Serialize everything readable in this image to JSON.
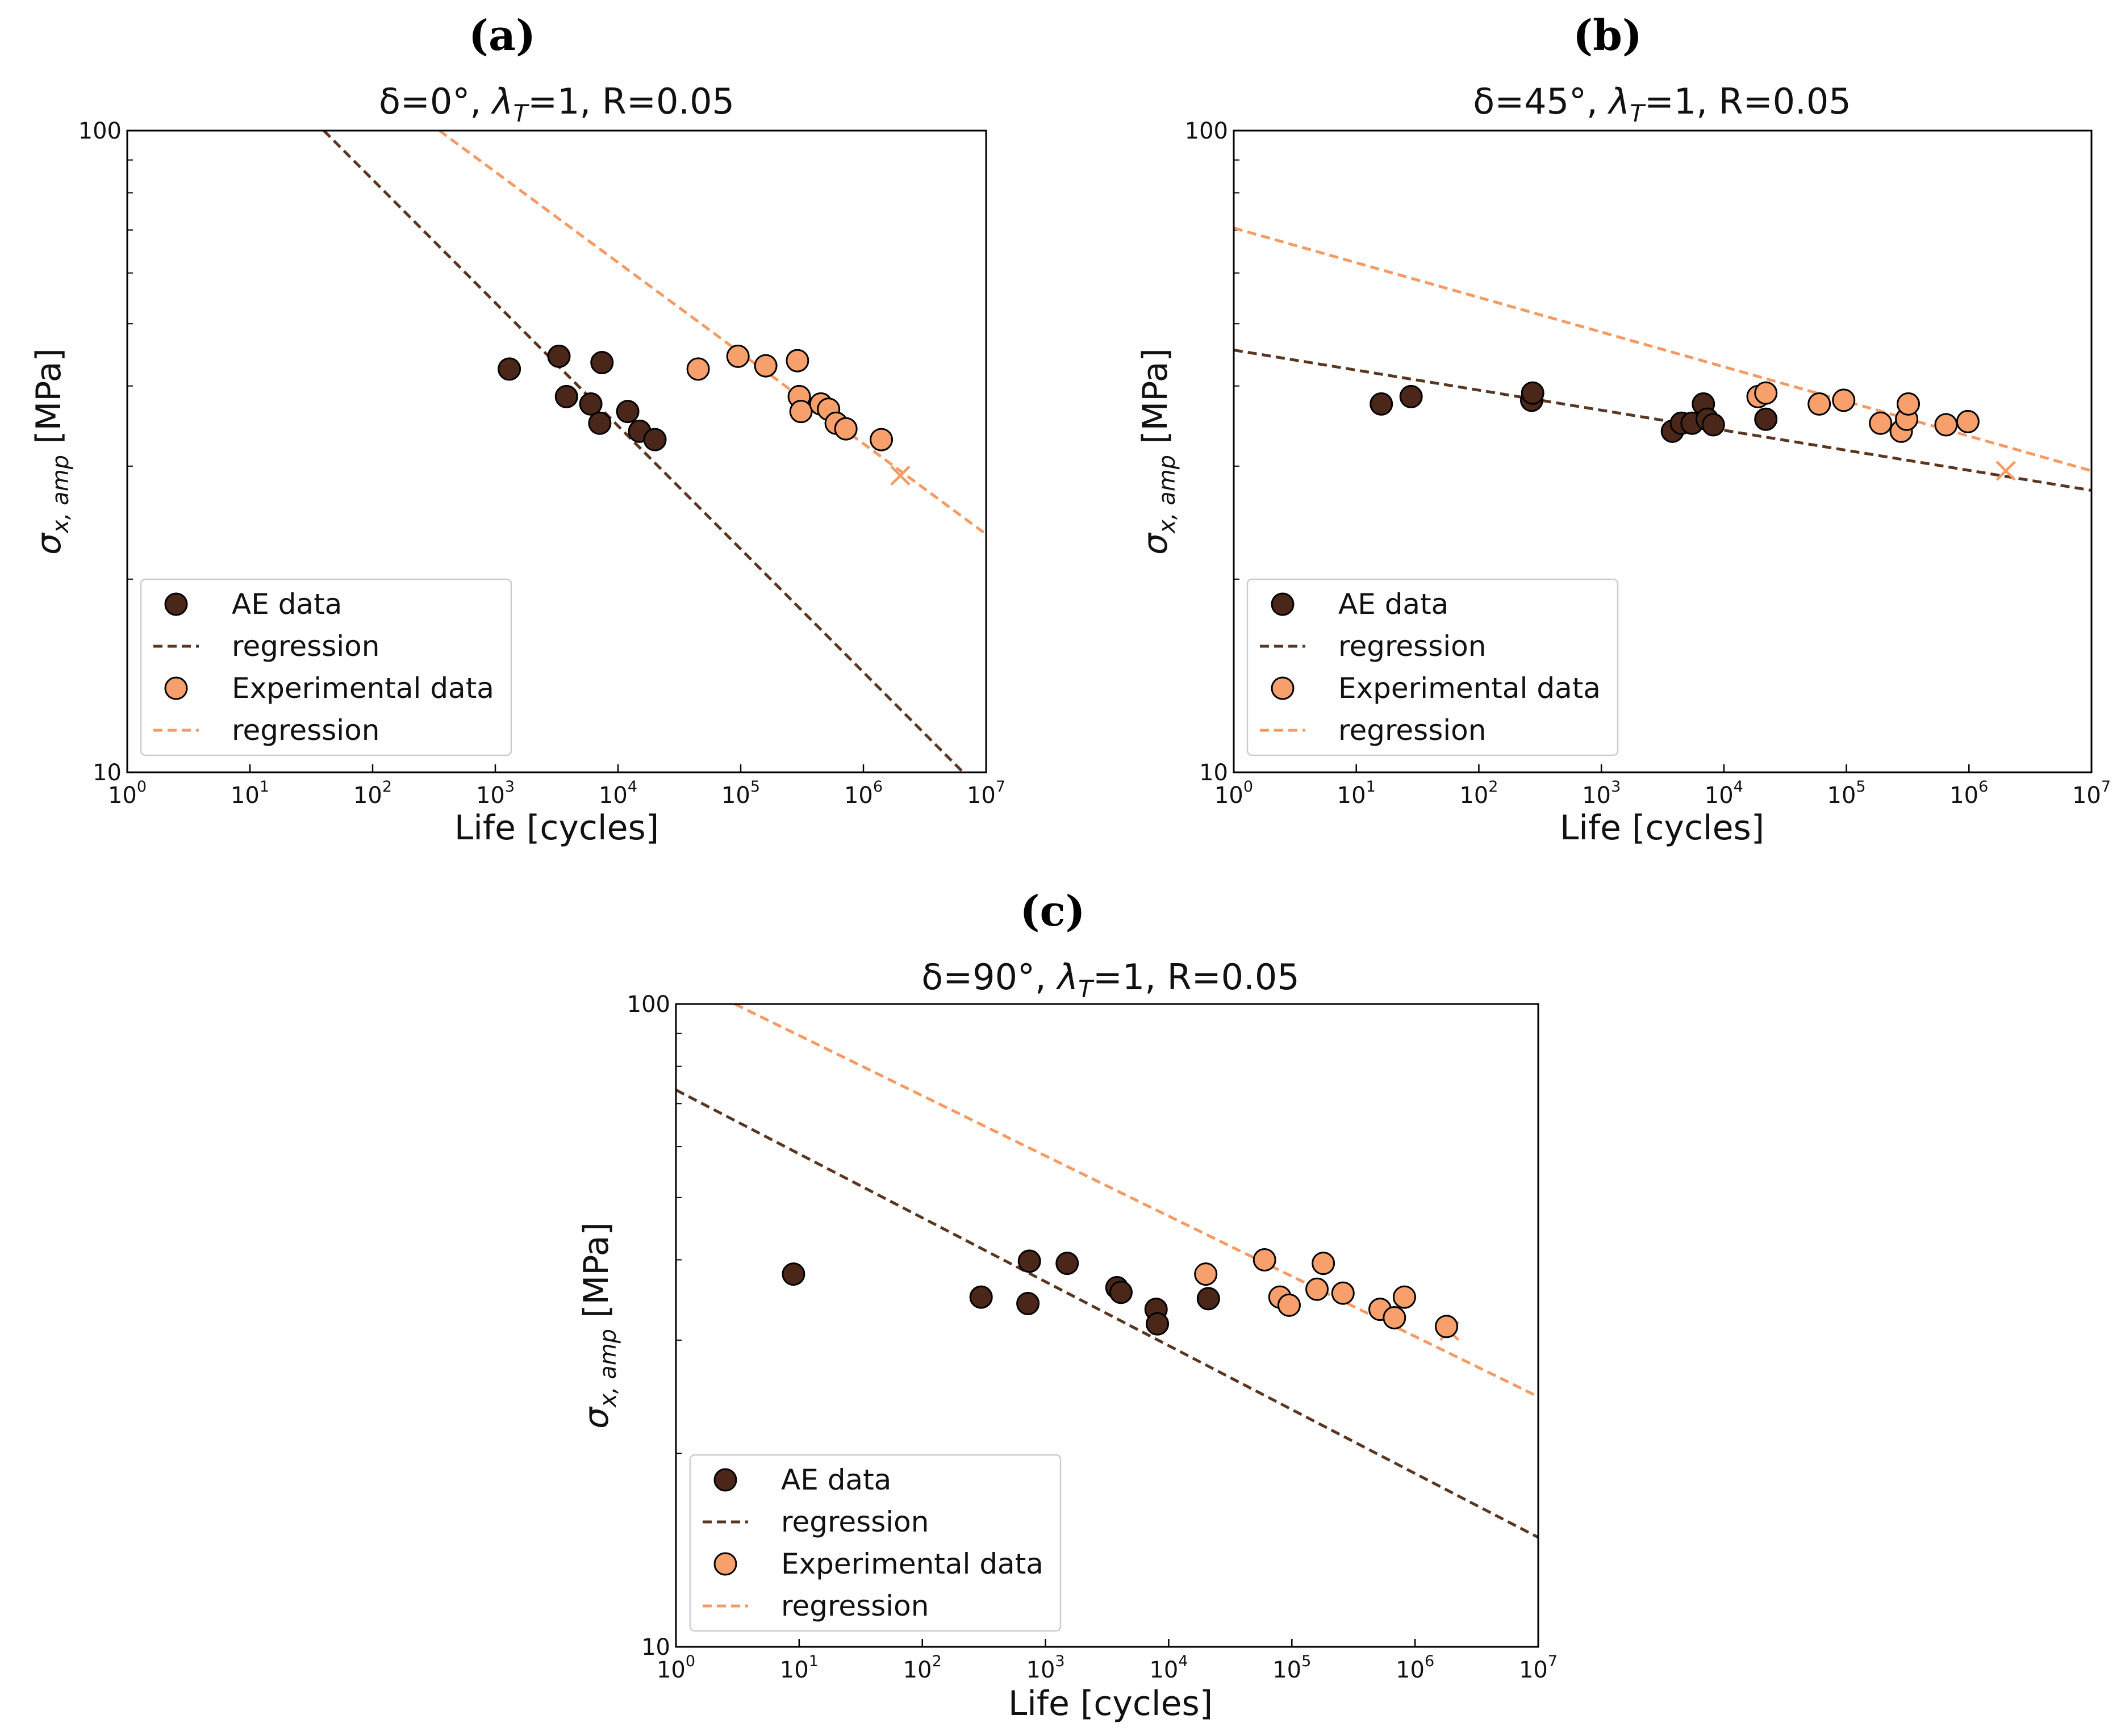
{
  "colors": {
    "ae": "#4b2719",
    "exp": "#f7a06c",
    "ae_line": "#5a3520",
    "exp_line": "#f59a62",
    "marker_edge": "#000000"
  },
  "chart_data": [
    {
      "panel": "(a)",
      "type": "scatter",
      "title": "δ=0°, λT=1, R=0.05",
      "title_main": "δ=0°, ",
      "title_lambda": "λ",
      "title_sub": "T",
      "title_rest": "=1, R=0.05",
      "xlabel": "Life [cycles]",
      "ylabel": "σx,amp [MPa]",
      "ylabel_sigma": "σ",
      "ylabel_sub": "x, amp",
      "ylabel_rest": " [MPa]",
      "xscale": "log",
      "yscale": "log",
      "xlim": [
        1,
        10000000
      ],
      "ylim": [
        10,
        100
      ],
      "xticks": [
        {
          "base": "10",
          "exp": "0"
        },
        {
          "base": "10",
          "exp": "1"
        },
        {
          "base": "10",
          "exp": "2"
        },
        {
          "base": "10",
          "exp": "3"
        },
        {
          "base": "10",
          "exp": "4"
        },
        {
          "base": "10",
          "exp": "5"
        },
        {
          "base": "10",
          "exp": "6"
        },
        {
          "base": "10",
          "exp": "7"
        }
      ],
      "yticks": [
        "10",
        "100"
      ],
      "legend_position": "lower-left",
      "legend": [
        "AE data",
        "regression",
        "Experimental data",
        "regression"
      ],
      "series": [
        {
          "name": "AE data",
          "kind": "points",
          "x": [
            1300,
            3300,
            3800,
            6000,
            7100,
            7400,
            12000,
            15000,
            20000
          ],
          "y": [
            42.5,
            44.5,
            38.5,
            37.5,
            35.0,
            43.5,
            36.5,
            34.0,
            33.0
          ]
        },
        {
          "name": "regression",
          "kind": "line",
          "x": [
            40,
            6500000
          ],
          "y": [
            100,
            10
          ]
        },
        {
          "name": "Experimental data",
          "kind": "points",
          "x": [
            45000,
            95000,
            160000,
            290000,
            300000,
            310000,
            450000,
            520000,
            600000,
            720000,
            1400000
          ],
          "y": [
            42.5,
            44.5,
            43.0,
            43.8,
            38.5,
            36.5,
            37.5,
            36.8,
            35.0,
            34.3,
            33.0
          ]
        },
        {
          "name": "regression",
          "kind": "line",
          "x": [
            350,
            10000000
          ],
          "y": [
            100,
            23.5
          ]
        }
      ],
      "runout": {
        "x": 2000000,
        "y": 29
      }
    },
    {
      "panel": "(b)",
      "type": "scatter",
      "title": "δ=45°, λT=1, R=0.05",
      "title_main": "δ=45°, ",
      "title_lambda": "λ",
      "title_sub": "T",
      "title_rest": "=1, R=0.05",
      "xlabel": "Life [cycles]",
      "ylabel": "σx,amp [MPa]",
      "ylabel_sigma": "σ",
      "ylabel_sub": "x, amp",
      "ylabel_rest": " [MPa]",
      "xscale": "log",
      "yscale": "log",
      "xlim": [
        1,
        10000000
      ],
      "ylim": [
        10,
        100
      ],
      "xticks": [
        {
          "base": "10",
          "exp": "0"
        },
        {
          "base": "10",
          "exp": "1"
        },
        {
          "base": "10",
          "exp": "2"
        },
        {
          "base": "10",
          "exp": "3"
        },
        {
          "base": "10",
          "exp": "4"
        },
        {
          "base": "10",
          "exp": "5"
        },
        {
          "base": "10",
          "exp": "6"
        },
        {
          "base": "10",
          "exp": "7"
        }
      ],
      "yticks": [
        "10",
        "100"
      ],
      "legend_position": "lower-left",
      "legend": [
        "AE data",
        "regression",
        "Experimental data",
        "regression"
      ],
      "series": [
        {
          "name": "AE data",
          "kind": "points",
          "x": [
            16,
            28,
            270,
            275,
            3800,
            4500,
            5500,
            6800,
            7300,
            8200,
            22000
          ],
          "y": [
            37.5,
            38.5,
            38.0,
            39.0,
            34.0,
            35.0,
            35.0,
            37.5,
            35.5,
            34.8,
            35.5
          ]
        },
        {
          "name": "regression",
          "kind": "line",
          "x": [
            1,
            10000000
          ],
          "y": [
            45.5,
            27.5
          ]
        },
        {
          "name": "Experimental data",
          "kind": "points",
          "x": [
            19000,
            22000,
            60000,
            95000,
            190000,
            280000,
            310000,
            320000,
            650000,
            980000
          ],
          "y": [
            38.5,
            39.0,
            37.5,
            38.0,
            35.0,
            34.0,
            35.5,
            37.5,
            34.8,
            35.2
          ]
        },
        {
          "name": "regression",
          "kind": "line",
          "x": [
            1,
            10000000
          ],
          "y": [
            70.5,
            29.5
          ]
        }
      ],
      "runout": {
        "x": 2000000,
        "y": 29.5
      }
    },
    {
      "panel": "(c)",
      "type": "scatter",
      "title": "δ=90°, λT=1, R=0.05",
      "title_main": "δ=90°, ",
      "title_lambda": "λ",
      "title_sub": "T",
      "title_rest": "=1, R=0.05",
      "xlabel": "Life [cycles]",
      "ylabel": "σx,amp [MPa]",
      "ylabel_sigma": "σ",
      "ylabel_sub": "x, amp",
      "ylabel_rest": " [MPa]",
      "xscale": "log",
      "yscale": "log",
      "xlim": [
        1,
        10000000
      ],
      "ylim": [
        10,
        100
      ],
      "xticks": [
        {
          "base": "10",
          "exp": "0"
        },
        {
          "base": "10",
          "exp": "1"
        },
        {
          "base": "10",
          "exp": "2"
        },
        {
          "base": "10",
          "exp": "3"
        },
        {
          "base": "10",
          "exp": "4"
        },
        {
          "base": "10",
          "exp": "5"
        },
        {
          "base": "10",
          "exp": "6"
        },
        {
          "base": "10",
          "exp": "7"
        }
      ],
      "yticks": [
        "10",
        "100"
      ],
      "legend_position": "lower-left",
      "legend": [
        "AE data",
        "regression",
        "Experimental data",
        "regression"
      ],
      "series": [
        {
          "name": "AE data",
          "kind": "points",
          "x": [
            9,
            300,
            720,
            740,
            1500,
            3800,
            4100,
            7900,
            8100,
            21000
          ],
          "y": [
            38.0,
            35.0,
            34.2,
            39.8,
            39.5,
            36.2,
            35.6,
            33.5,
            31.8,
            34.8
          ]
        },
        {
          "name": "regression",
          "kind": "line",
          "x": [
            1,
            10000000
          ],
          "y": [
            73.5,
            14.8
          ]
        },
        {
          "name": "Experimental data",
          "kind": "points",
          "x": [
            20000,
            60000,
            80000,
            95000,
            160000,
            180000,
            260000,
            520000,
            680000,
            820000,
            1800000
          ],
          "y": [
            38.0,
            40.0,
            35.0,
            34.0,
            36.0,
            39.5,
            35.5,
            33.5,
            32.5,
            35.0,
            31.5
          ]
        },
        {
          "name": "regression",
          "kind": "line",
          "x": [
            3,
            10000000
          ],
          "y": [
            100,
            24.5
          ]
        }
      ],
      "runout": {
        "x": 1900000,
        "y": 31
      }
    }
  ]
}
